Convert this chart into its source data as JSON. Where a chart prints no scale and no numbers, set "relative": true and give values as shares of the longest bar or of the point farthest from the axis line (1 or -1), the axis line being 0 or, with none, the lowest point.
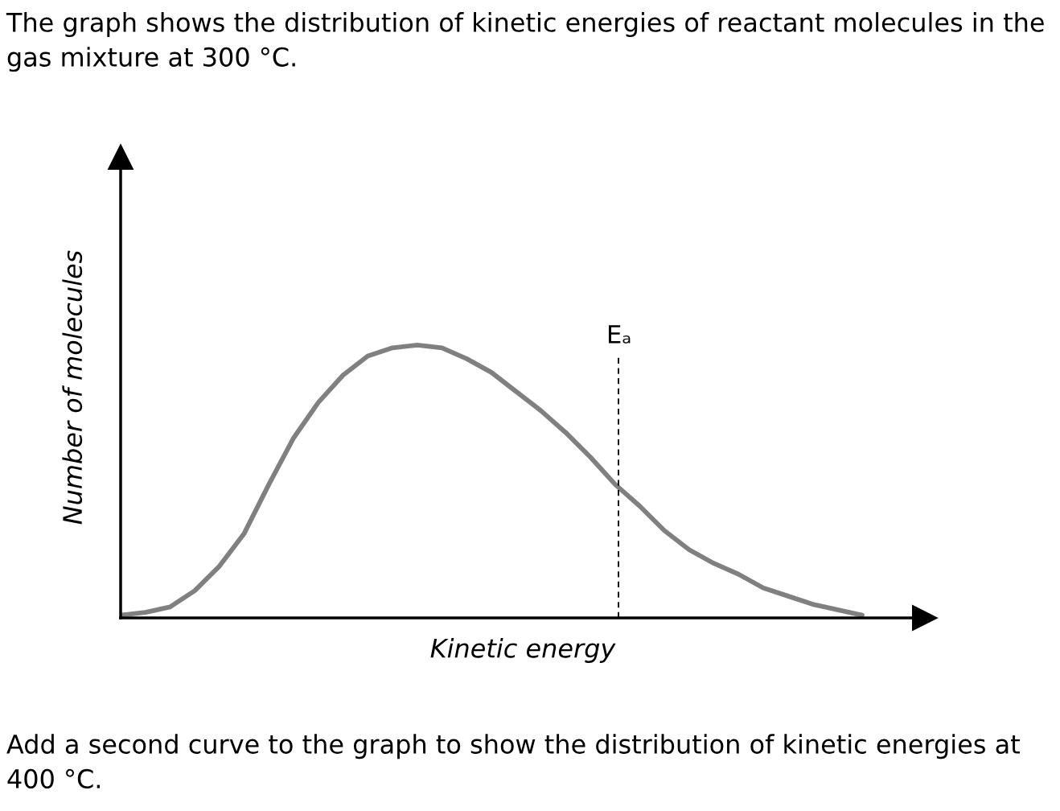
{
  "chart_data": {
    "type": "line",
    "title": "The graph shows the distribution of kinetic energies of reactant molecules in the gas mixture at 300 °C.",
    "xlabel": "Kinetic energy",
    "ylabel": "Number of molecules",
    "relative": true,
    "legend": false,
    "marker": "none",
    "line_style": "solid",
    "categories": [
      null,
      null,
      null,
      null,
      null,
      null,
      null,
      null,
      null,
      null,
      null,
      null,
      null,
      null,
      null,
      null,
      null,
      null,
      null,
      null,
      null,
      null,
      null,
      null,
      null,
      null,
      null,
      null,
      null,
      null,
      null
    ],
    "series": [
      {
        "color": "#808080",
        "values": [
          0.01,
          0.02,
          0.04,
          0.1,
          0.19,
          0.31,
          0.49,
          0.66,
          0.79,
          0.89,
          0.96,
          0.99,
          1.0,
          0.99,
          0.95,
          0.9,
          0.83,
          0.76,
          0.68,
          0.59,
          0.49,
          0.41,
          0.32,
          0.25,
          0.2,
          0.16,
          0.11,
          0.08,
          0.05,
          0.03,
          0.01
        ]
      }
    ],
    "annotations": [
      "Eₐ",
      "Add a second curve to the graph to show the distribution of kinetic energies at 400 °C."
    ]
  }
}
